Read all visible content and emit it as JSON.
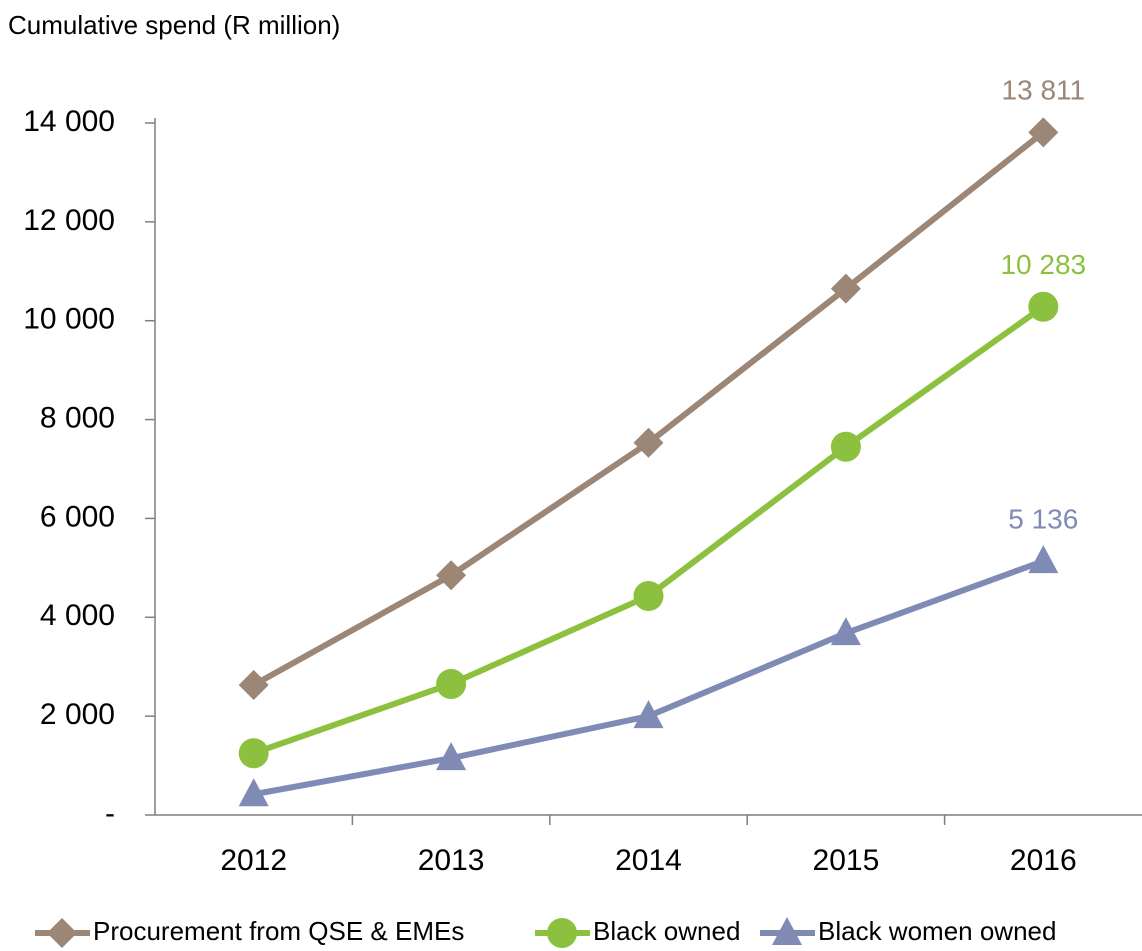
{
  "chart_data": {
    "type": "line",
    "y_axis_label": "Cumulative spend (R million)",
    "categories": [
      "2012",
      "2013",
      "2014",
      "2015",
      "2016"
    ],
    "series": [
      {
        "name": "Procurement from QSE & EMEs",
        "color": "#9c8676",
        "marker": "diamond",
        "values": [
          2630,
          4850,
          7530,
          10650,
          13811
        ],
        "value_labels": [
          null,
          null,
          null,
          null,
          "13 811"
        ]
      },
      {
        "name": "Black owned",
        "color": "#8cc03f",
        "marker": "circle",
        "values": [
          1250,
          2650,
          4430,
          7450,
          10283
        ],
        "value_labels": [
          null,
          null,
          null,
          null,
          "10 283"
        ]
      },
      {
        "name": "Black women owned",
        "color": "#7f8bb5",
        "marker": "triangle",
        "values": [
          420,
          1150,
          2000,
          3680,
          5136
        ],
        "value_labels": [
          null,
          null,
          null,
          null,
          "5 136"
        ]
      }
    ],
    "ylim": [
      0,
      14000
    ],
    "yticks": [
      {
        "value": 0,
        "label": "-"
      },
      {
        "value": 2000,
        "label": "2 000"
      },
      {
        "value": 4000,
        "label": "4 000"
      },
      {
        "value": 6000,
        "label": "6 000"
      },
      {
        "value": 8000,
        "label": "8 000"
      },
      {
        "value": 10000,
        "label": "10 000"
      },
      {
        "value": 12000,
        "label": "12 000"
      },
      {
        "value": 14000,
        "label": "14 000"
      }
    ],
    "grid": false,
    "legend": "bottom"
  }
}
